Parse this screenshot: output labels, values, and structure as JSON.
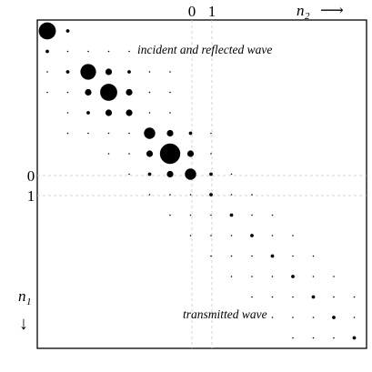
{
  "axes": {
    "col_axis": {
      "name": "n",
      "sub": "2",
      "arrow": "⟶",
      "ticks": [
        "0",
        "1"
      ]
    },
    "row_axis": {
      "name": "n",
      "sub": "1",
      "arrow": "↓",
      "ticks": [
        "0",
        "1"
      ]
    }
  },
  "annotations": {
    "upper": "incident and reflected wave",
    "lower": "transmitted wave"
  },
  "matrix": {
    "size": 16,
    "origin_index": 7,
    "entries": [
      [
        0,
        0,
        "xl"
      ],
      [
        0,
        1,
        "s"
      ],
      [
        1,
        0,
        "s"
      ],
      [
        1,
        1,
        "t"
      ],
      [
        1,
        2,
        "t"
      ],
      [
        1,
        3,
        "t"
      ],
      [
        1,
        4,
        "t"
      ],
      [
        2,
        0,
        "t"
      ],
      [
        2,
        1,
        "s"
      ],
      [
        2,
        2,
        "l"
      ],
      [
        2,
        3,
        "m"
      ],
      [
        2,
        4,
        "s"
      ],
      [
        2,
        5,
        "t"
      ],
      [
        2,
        6,
        "t"
      ],
      [
        3,
        0,
        "t"
      ],
      [
        3,
        1,
        "t"
      ],
      [
        3,
        2,
        "m"
      ],
      [
        3,
        3,
        "xl"
      ],
      [
        3,
        4,
        "m"
      ],
      [
        3,
        5,
        "t"
      ],
      [
        3,
        6,
        "t"
      ],
      [
        4,
        1,
        "t"
      ],
      [
        4,
        2,
        "s"
      ],
      [
        4,
        3,
        "m"
      ],
      [
        4,
        4,
        "m"
      ],
      [
        4,
        5,
        "t"
      ],
      [
        4,
        6,
        "t"
      ],
      [
        5,
        1,
        "t"
      ],
      [
        5,
        2,
        "t"
      ],
      [
        5,
        3,
        "t"
      ],
      [
        5,
        4,
        "t"
      ],
      [
        5,
        5,
        "ml"
      ],
      [
        5,
        6,
        "m"
      ],
      [
        5,
        7,
        "s"
      ],
      [
        5,
        8,
        "t"
      ],
      [
        6,
        3,
        "t"
      ],
      [
        6,
        4,
        "t"
      ],
      [
        6,
        5,
        "m"
      ],
      [
        6,
        6,
        "xxl"
      ],
      [
        6,
        7,
        "m"
      ],
      [
        6,
        8,
        "t"
      ],
      [
        7,
        4,
        "t"
      ],
      [
        7,
        5,
        "s"
      ],
      [
        7,
        6,
        "m"
      ],
      [
        7,
        7,
        "ml"
      ],
      [
        7,
        8,
        "s"
      ],
      [
        7,
        9,
        "t"
      ],
      [
        8,
        5,
        "t"
      ],
      [
        8,
        6,
        "t"
      ],
      [
        8,
        7,
        "t"
      ],
      [
        8,
        8,
        "s"
      ],
      [
        8,
        9,
        "t"
      ],
      [
        8,
        10,
        "t"
      ],
      [
        9,
        6,
        "t"
      ],
      [
        9,
        7,
        "t"
      ],
      [
        9,
        8,
        "t"
      ],
      [
        9,
        9,
        "s"
      ],
      [
        9,
        10,
        "t"
      ],
      [
        9,
        11,
        "t"
      ],
      [
        10,
        7,
        "t"
      ],
      [
        10,
        8,
        "t"
      ],
      [
        10,
        9,
        "t"
      ],
      [
        10,
        10,
        "s"
      ],
      [
        10,
        11,
        "t"
      ],
      [
        10,
        12,
        "t"
      ],
      [
        11,
        8,
        "t"
      ],
      [
        11,
        9,
        "t"
      ],
      [
        11,
        10,
        "t"
      ],
      [
        11,
        11,
        "s"
      ],
      [
        11,
        12,
        "t"
      ],
      [
        11,
        13,
        "t"
      ],
      [
        12,
        9,
        "t"
      ],
      [
        12,
        10,
        "t"
      ],
      [
        12,
        11,
        "t"
      ],
      [
        12,
        12,
        "s"
      ],
      [
        12,
        13,
        "t"
      ],
      [
        12,
        14,
        "t"
      ],
      [
        13,
        10,
        "t"
      ],
      [
        13,
        11,
        "t"
      ],
      [
        13,
        12,
        "t"
      ],
      [
        13,
        13,
        "s"
      ],
      [
        13,
        14,
        "t"
      ],
      [
        13,
        15,
        "t"
      ],
      [
        14,
        11,
        "t"
      ],
      [
        14,
        12,
        "t"
      ],
      [
        14,
        13,
        "t"
      ],
      [
        14,
        14,
        "s"
      ],
      [
        14,
        15,
        "t"
      ],
      [
        15,
        12,
        "t"
      ],
      [
        15,
        13,
        "t"
      ],
      [
        15,
        14,
        "t"
      ],
      [
        15,
        15,
        "s"
      ]
    ]
  }
}
